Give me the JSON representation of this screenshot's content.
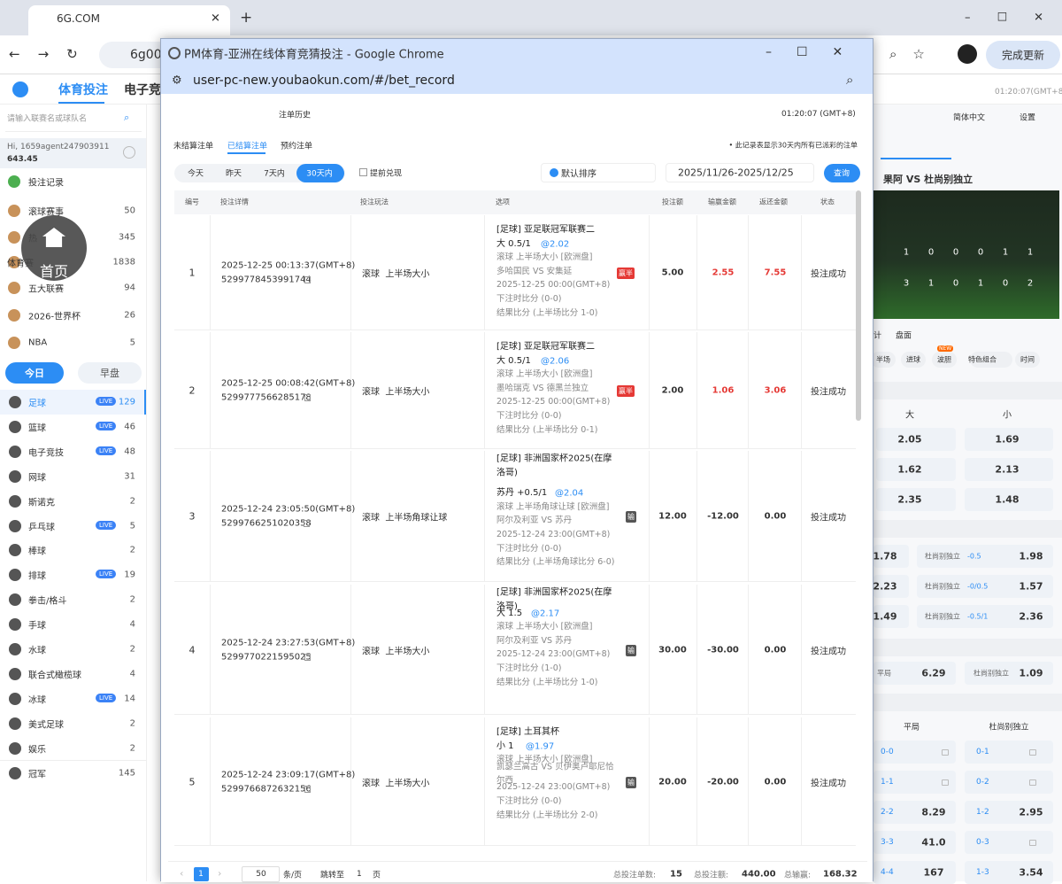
{
  "browser": {
    "tab_title": "6G.COM",
    "address": "6g00",
    "update_button": "完成更新"
  },
  "site": {
    "nav": [
      "体育投注",
      "电子竞"
    ],
    "clock": "01:20:07(GMT+8)",
    "search_placeholder": "请输入联赛名或球队名",
    "greeting": "Hi, 1659agent247903911",
    "balance": "643.45",
    "home_button": "首页",
    "menu": [
      {
        "label": "投注记录"
      },
      {
        "label": "滚球赛事",
        "count": "50"
      },
      {
        "label": "热",
        "count": "345"
      },
      {
        "label": "体育赛",
        "count": "1838"
      },
      {
        "label": "五大联赛",
        "count": "94"
      },
      {
        "label": "2026-世界杯",
        "count": "26"
      },
      {
        "label": "NBA",
        "count": "5"
      }
    ],
    "day_tabs": [
      "今日",
      "早盘"
    ],
    "live_badge": "LIVE",
    "sports": [
      {
        "label": "足球",
        "count": "129",
        "live": true
      },
      {
        "label": "篮球",
        "count": "46",
        "live": true
      },
      {
        "label": "电子竞技",
        "count": "48",
        "live": true
      },
      {
        "label": "网球",
        "count": "31"
      },
      {
        "label": "斯诺克",
        "count": "2"
      },
      {
        "label": "乒乓球",
        "count": "5",
        "live": true
      },
      {
        "label": "棒球",
        "count": "2"
      },
      {
        "label": "排球",
        "count": "19",
        "live": true
      },
      {
        "label": "拳击/格斗",
        "count": "2"
      },
      {
        "label": "手球",
        "count": "4"
      },
      {
        "label": "水球",
        "count": "2"
      },
      {
        "label": "联合式橄榄球",
        "count": "4"
      },
      {
        "label": "冰球",
        "count": "14",
        "live": true
      },
      {
        "label": "美式足球",
        "count": "2"
      },
      {
        "label": "娱乐",
        "count": "2"
      },
      {
        "label": "冠军",
        "count": "145"
      }
    ]
  },
  "match_panel": {
    "language": "简体中文",
    "settings": "设置",
    "match": "果阿 VS 杜尚别独立",
    "score_rows": [
      [
        "1",
        "0",
        "0",
        "0",
        "1",
        "1"
      ],
      [
        "3",
        "1",
        "0",
        "1",
        "0",
        "2"
      ]
    ],
    "tabs": [
      "计",
      "盘面"
    ],
    "filters": [
      "半场",
      "进球",
      "波胆",
      "特色组合",
      "时间"
    ],
    "new_badge": "NEW",
    "ou_headers": [
      "大",
      "小"
    ],
    "ou_rows": [
      [
        "2.05",
        "1.69"
      ],
      [
        "1.62",
        "2.13"
      ],
      [
        "2.35",
        "1.48"
      ]
    ],
    "handicap_rows": [
      {
        "left": "1.78",
        "label": "杜尚别独立",
        "line": "-0.5",
        "right": "1.98"
      },
      {
        "left": "2.23",
        "label": "杜尚别独立",
        "line": "-0/0.5",
        "right": "1.57"
      },
      {
        "left": "1.49",
        "label": "杜尚别独立",
        "line": "-0.5/1",
        "right": "2.36"
      }
    ],
    "draw_row": {
      "label": "平局",
      "odds": "6.29",
      "right_label": "杜尚别独立",
      "right_odds": "1.09"
    },
    "cs_headers": [
      "平局",
      "杜尚别独立"
    ],
    "cs_rows": [
      {
        "left": "0-0",
        "right": "0-1"
      },
      {
        "left": "1-1",
        "right": "0-2"
      },
      {
        "left": "2-2",
        "left_odds": "8.29",
        "right": "1-2",
        "right_odds": "2.95"
      },
      {
        "left": "3-3",
        "left_odds": "41.0",
        "right": "0-3"
      },
      {
        "left": "4-4",
        "left_odds": "167",
        "right": "1-3",
        "right_odds": "3.54"
      }
    ]
  },
  "popup": {
    "window_title": "PM体育-亚洲在线体育竞猜投注 - Google Chrome",
    "url": "user-pc-new.youbaokun.com/#/bet_record",
    "page_title": "注单历史",
    "time": "01:20:07 (GMT+8)",
    "tabs": [
      "未结算注单",
      "已结算注单",
      "预约注单"
    ],
    "note": "• 此记录表显示30天内所有已派彩的注单",
    "ranges": [
      "今天",
      "昨天",
      "7天内",
      "30天内"
    ],
    "early_cashout": "提前兑现",
    "sort": "默认排序",
    "date_range": "2025/11/26-2025/12/25",
    "query": "查询",
    "table": {
      "headers": [
        "编号",
        "投注详情",
        "投注玩法",
        "选项",
        "投注额",
        "输赢金额",
        "返还金额",
        "状态"
      ],
      "rows": [
        {
          "no": "1",
          "time": "2025-12-25 00:13:37(GMT+8)",
          "order_id": "5299778453991744",
          "play": "滚球  上半场大小",
          "league": "[足球] 亚足联冠军联赛二",
          "pick": "大 0.5/1",
          "odds": "@2.02",
          "market": "滚球 上半场大小 [欧洲盘]",
          "teams": "多哈国民 VS 安集延",
          "kickoff": "2025-12-25 00:00(GMT+8)",
          "bet_score": "下注时比分 (0-0)",
          "result": "结果比分 (上半场比分 1-0)",
          "badge": "赢半",
          "stake": "5.00",
          "win": "2.55",
          "return": "7.55",
          "status": "投注成功"
        },
        {
          "no": "2",
          "time": "2025-12-25 00:08:42(GMT+8)",
          "order_id": "5299777566285178",
          "play": "滚球  上半场大小",
          "league": "[足球] 亚足联冠军联赛二",
          "pick": "大 0.5/1",
          "odds": "@2.06",
          "market": "滚球 上半场大小 [欧洲盘]",
          "teams": "墨哈瑞克 VS 德黑兰独立",
          "kickoff": "2025-12-25 00:00(GMT+8)",
          "bet_score": "下注时比分 (0-0)",
          "result": "结果比分 (上半场比分 0-1)",
          "badge": "赢半",
          "stake": "2.00",
          "win": "1.06",
          "return": "3.06",
          "status": "投注成功"
        },
        {
          "no": "3",
          "time": "2025-12-24 23:05:50(GMT+8)",
          "order_id": "5299766251020358",
          "play": "滚球  上半场角球让球",
          "league": "[足球] 非洲国家杯2025(在摩洛哥)",
          "pick": "苏丹 +0.5/1",
          "odds": "@2.04",
          "market": "滚球 上半场角球让球 [欧洲盘]",
          "teams": "阿尔及利亚 VS 苏丹",
          "kickoff": "2025-12-24 23:00(GMT+8)",
          "bet_score": "下注时比分 (0-0)",
          "result": "结果比分 (上半场角球比分 6-0)",
          "badge": "输",
          "stake": "12.00",
          "win": "-12.00",
          "return": "0.00",
          "status": "投注成功"
        },
        {
          "no": "4",
          "time": "2025-12-24 23:27:53(GMT+8)",
          "order_id": "5299770221595025",
          "play": "滚球  上半场大小",
          "league": "[足球] 非洲国家杯2025(在摩洛哥)",
          "pick": "大 1.5",
          "odds": "@2.17",
          "market": "滚球 上半场大小 [欧洲盘]",
          "teams": "阿尔及利亚 VS 苏丹",
          "kickoff": "2025-12-24 23:00(GMT+8)",
          "bet_score": "下注时比分 (1-0)",
          "result": "结果比分 (上半场比分 1-0)",
          "badge": "输",
          "stake": "30.00",
          "win": "-30.00",
          "return": "0.00",
          "status": "投注成功"
        },
        {
          "no": "5",
          "time": "2025-12-24 23:09:17(GMT+8)",
          "order_id": "5299766872632156",
          "play": "滚球  上半场大小",
          "league": "[足球] 土耳其杯",
          "pick": "小 1",
          "odds": "@1.97",
          "market": "滚球 上半场大小 [欧洲盘]",
          "teams": "凯瑟兰高古 VS 贝伊奥卢耶尼恰尔西",
          "kickoff": "2025-12-24 23:00(GMT+8)",
          "bet_score": "下注时比分 (0-0)",
          "result": "结果比分 (上半场比分 2-0)",
          "badge": "输",
          "stake": "20.00",
          "win": "-20.00",
          "return": "0.00",
          "status": "投注成功"
        }
      ]
    },
    "footer": {
      "page": "1",
      "page_size": "50",
      "per_page": "条/页",
      "goto": "跳转至",
      "goto_page": "1",
      "page_unit": "页",
      "count_label": "总投注单数:",
      "count": "15",
      "stake_label": "总投注额:",
      "stake": "440.00",
      "win_label": "总输赢:",
      "win": "168.32"
    }
  }
}
